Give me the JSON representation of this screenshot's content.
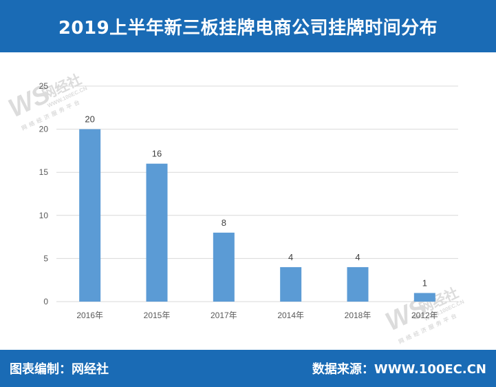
{
  "header": {
    "title": "2019上半年新三板挂牌电商公司挂牌时间分布"
  },
  "footer": {
    "left": "图表编制：网经社",
    "right": "数据来源：WWW.100EC.CN"
  },
  "watermark": {
    "logo": "WS",
    "name": "网经社",
    "url": "WWW.100EC.CN",
    "slogan": "网络经济服务平台"
  },
  "colors": {
    "header_bg": "#1a6bb5",
    "bar": "#5b9bd5",
    "grid": "#d9d9d9"
  },
  "chart_data": {
    "type": "bar",
    "categories": [
      "2016年",
      "2015年",
      "2017年",
      "2014年",
      "2018年",
      "2012年"
    ],
    "values": [
      20,
      16,
      8,
      4,
      4,
      1
    ],
    "ylim": [
      0,
      25
    ],
    "yticks": [
      0,
      5,
      10,
      15,
      20,
      25
    ],
    "grid": true,
    "data_labels": true,
    "title": "",
    "xlabel": "",
    "ylabel": ""
  }
}
